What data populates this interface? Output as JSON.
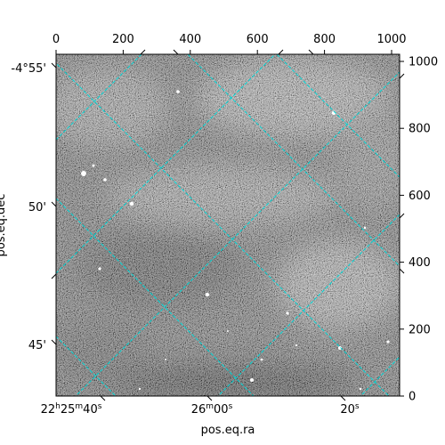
{
  "figure": {
    "xlabel": "pos.eq.ra",
    "ylabel": "pos.eq.dec",
    "grid_color": "#00d5d5",
    "background": "#ffffff",
    "image_colormap": "gray",
    "pixel_axes": {
      "x": {
        "range": [
          0,
          1024
        ],
        "ticks": [
          "0",
          "200",
          "400",
          "600",
          "800",
          "1000"
        ]
      },
      "y": {
        "range": [
          0,
          1024
        ],
        "ticks": [
          "0",
          "200",
          "400",
          "600",
          "800",
          "1000"
        ]
      }
    },
    "world_axes": {
      "ra_ticks": [
        "22h25m40s",
        "26m00s",
        "20s"
      ],
      "ra_ticks_display": [
        {
          "main": "22",
          "h": "h",
          "m1": "25",
          "mm": "m",
          "s1": "40",
          "ss": "s"
        },
        {
          "main": "26",
          "mm": "m",
          "s1": "00",
          "ss": "s"
        },
        {
          "main": "20",
          "ss": "s"
        }
      ],
      "dec_ticks": [
        "-4°55'",
        "50'",
        "45'"
      ]
    }
  }
}
